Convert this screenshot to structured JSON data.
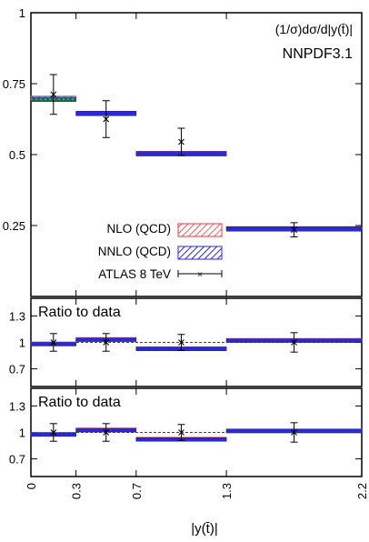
{
  "chart_data": {
    "type": "histogram-ratio",
    "xlabel": "|y(t̄)|",
    "x_bin_edges": [
      0,
      0.3,
      0.7,
      1.3,
      2.2
    ],
    "x_tick_labels": [
      "0",
      "0.3",
      "0.7",
      "1.3",
      "2.2"
    ],
    "colors": {
      "nlo": "#e03c3c",
      "nnlo": "#2a2ad0",
      "nnlo_edge": "#1818b0",
      "data": "#000000",
      "first_bin_fill": "#1e6a52"
    },
    "main": {
      "title": "(1/σ)dσ/d|y(t̄)|",
      "subtitle": "NNPDF3.1",
      "ylim": [
        0,
        1
      ],
      "y_ticks": [
        0.25,
        0.5,
        0.75,
        1
      ],
      "y_tick_labels": [
        "0.25",
        "0.5",
        "0.75",
        "1"
      ],
      "series": [
        {
          "name": "NLO (QCD)",
          "values": [
            0.7,
            0.645,
            0.505,
            0.24
          ]
        },
        {
          "name": "NNLO (QCD)",
          "values": [
            0.695,
            0.645,
            0.503,
            0.238
          ]
        },
        {
          "name": "ATLAS 8 TeV",
          "x": [
            0.15,
            0.5,
            1.0,
            1.75
          ],
          "values": [
            0.712,
            0.625,
            0.545,
            0.235
          ],
          "err": [
            0.07,
            0.065,
            0.048,
            0.025
          ]
        }
      ]
    },
    "ratios": [
      {
        "label": "Ratio to data",
        "ylim": [
          0.5,
          1.5
        ],
        "y_ticks": [
          0.7,
          1,
          1.3
        ],
        "y_tick_labels": [
          "0.7",
          "1",
          "1.3"
        ],
        "series": [
          {
            "name": "NLO (QCD)",
            "values": [
              0.985,
              1.035,
              0.93,
              1.025
            ]
          },
          {
            "name": "NNLO (QCD)",
            "values": [
              0.98,
              1.03,
              0.925,
              1.02
            ]
          },
          {
            "name": "ATLAS 8 TeV",
            "x": [
              0.15,
              0.5,
              1.0,
              1.75
            ],
            "values": [
              1.0,
              1.0,
              1.0,
              1.0
            ],
            "err": [
              0.1,
              0.1,
              0.09,
              0.11
            ]
          }
        ]
      },
      {
        "label": "Ratio to data",
        "ylim": [
          0.5,
          1.5
        ],
        "y_ticks": [
          0.7,
          1,
          1.3
        ],
        "y_tick_labels": [
          "0.7",
          "1",
          "1.3"
        ],
        "series": [
          {
            "name": "NLO (QCD)",
            "values": [
              0.98,
              1.03,
              0.925,
              1.02
            ]
          },
          {
            "name": "NNLO (QCD)",
            "values": [
              0.975,
              1.025,
              0.92,
              1.015
            ]
          },
          {
            "name": "ATLAS 8 TeV",
            "x": [
              0.15,
              0.5,
              1.0,
              1.75
            ],
            "values": [
              1.0,
              1.0,
              1.0,
              1.0
            ],
            "err": [
              0.1,
              0.1,
              0.09,
              0.11
            ]
          }
        ]
      }
    ]
  }
}
